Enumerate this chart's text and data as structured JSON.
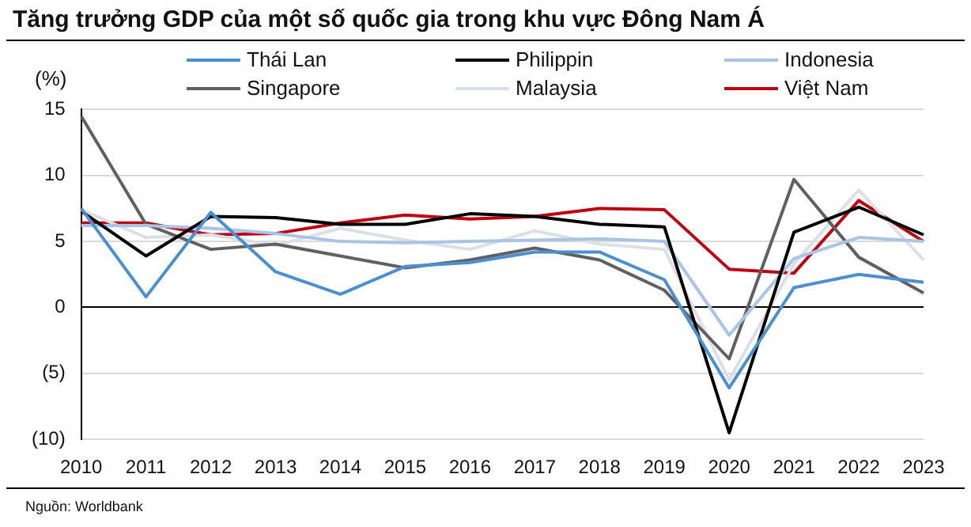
{
  "chart_data": {
    "type": "line",
    "title": "Tăng trưởng GDP của một số quốc gia trong khu vực Đông Nam Á",
    "ylabel": "(%)",
    "annotations": [
      "Nguồn: Worldbank"
    ],
    "categories": [
      "2010",
      "2011",
      "2012",
      "2013",
      "2014",
      "2015",
      "2016",
      "2017",
      "2018",
      "2019",
      "2020",
      "2021",
      "2022",
      "2023"
    ],
    "series": [
      {
        "name": "Thái Lan",
        "color": "#4a90d0",
        "values": [
          7.5,
          0.8,
          7.2,
          2.7,
          1.0,
          3.1,
          3.4,
          4.2,
          4.2,
          2.1,
          -6.1,
          1.5,
          2.5,
          1.9
        ]
      },
      {
        "name": "Philippin",
        "color": "#000000",
        "values": [
          7.3,
          3.9,
          6.9,
          6.8,
          6.3,
          6.3,
          7.1,
          6.9,
          6.3,
          6.1,
          -9.5,
          5.7,
          7.6,
          5.5
        ]
      },
      {
        "name": "Indonesia",
        "color": "#a9c4e6",
        "values": [
          6.2,
          6.2,
          6.0,
          5.6,
          5.0,
          4.9,
          5.0,
          5.1,
          5.2,
          5.0,
          -2.1,
          3.7,
          5.3,
          5.0
        ]
      },
      {
        "name": "Singapore",
        "color": "#606060",
        "values": [
          14.5,
          6.3,
          4.4,
          4.8,
          3.9,
          3.0,
          3.6,
          4.5,
          3.6,
          1.3,
          -3.9,
          9.7,
          3.8,
          1.1
        ]
      },
      {
        "name": "Malaysia",
        "color": "#dcdfe6",
        "values": [
          7.4,
          5.3,
          5.5,
          4.7,
          6.0,
          5.1,
          4.4,
          5.8,
          4.8,
          4.4,
          -5.5,
          3.3,
          8.9,
          3.6
        ]
      },
      {
        "name": "Việt Nam",
        "color": "#c00010",
        "values": [
          6.4,
          6.4,
          5.5,
          5.6,
          6.4,
          7.0,
          6.7,
          6.9,
          7.5,
          7.4,
          2.9,
          2.6,
          8.1,
          5.0
        ]
      }
    ],
    "ylim": [
      -10,
      15
    ],
    "yticks": [
      {
        "value": -10,
        "label": "(10)"
      },
      {
        "value": -5,
        "label": "(5)"
      },
      0,
      5,
      10,
      15
    ],
    "grid": "y",
    "legend": "top",
    "marker": "none",
    "line_style": "solid"
  }
}
